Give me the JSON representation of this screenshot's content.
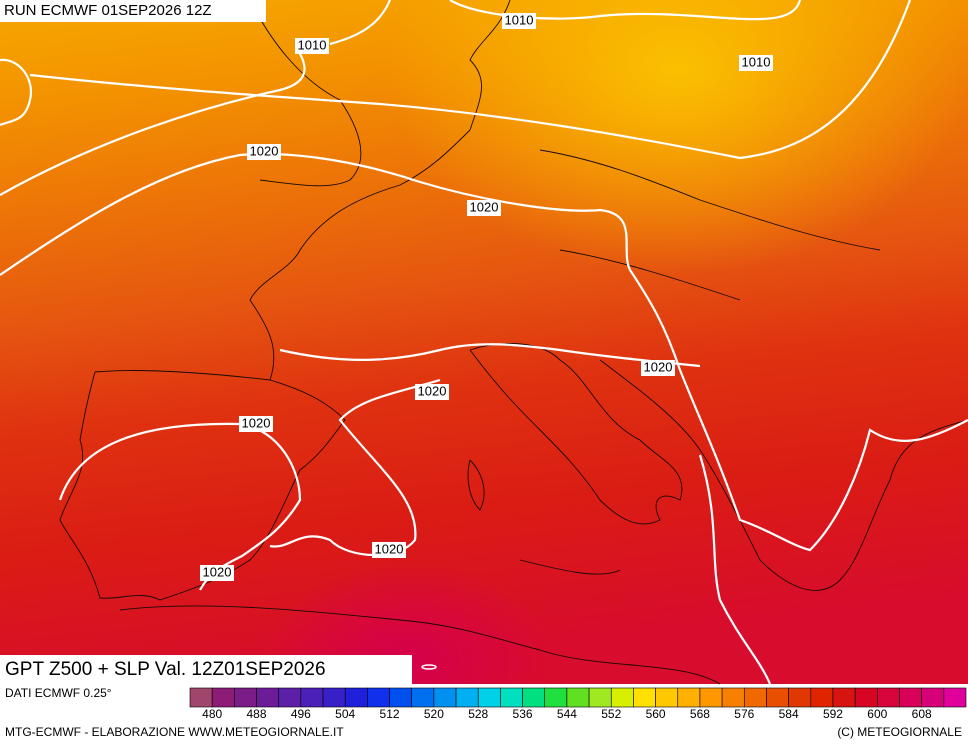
{
  "header": {
    "run": "RUN ECMWF 01SEP2026 12Z"
  },
  "map": {
    "isobar_labels": [
      "1010",
      "1010",
      "1010",
      "1020",
      "1020",
      "1020",
      "1020",
      "1020",
      "1020",
      "1020"
    ]
  },
  "footer": {
    "title": "GPT Z500 + SLP Val. 12Z01SEP2026",
    "data_source": "DATI ECMWF 0.25°",
    "credit": "MTG-ECMWF - ELABORAZIONE WWW.METEOGIORNALE.IT",
    "copyright": "(C) METEOGIORNALE"
  },
  "colorbar": {
    "ticks": [
      480,
      488,
      496,
      504,
      512,
      520,
      528,
      536,
      544,
      552,
      560,
      568,
      576,
      584,
      592,
      600,
      608
    ],
    "colors": [
      "#a0466c",
      "#8c1c78",
      "#7c1c88",
      "#6c1c98",
      "#5c20a8",
      "#4a20b8",
      "#3820c8",
      "#2020dc",
      "#1030ec",
      "#0050f0",
      "#0070f0",
      "#0090f0",
      "#00b0f0",
      "#00d0e8",
      "#00e0c0",
      "#00e080",
      "#20e040",
      "#60e020",
      "#a0e820",
      "#d8f000",
      "#ffe000",
      "#ffc800",
      "#ffb000",
      "#ff9800",
      "#f88000",
      "#f06800",
      "#e85000",
      "#e03800",
      "#e02400",
      "#d81410",
      "#d80424",
      "#d8043c",
      "#d80058",
      "#d80078",
      "#e0009c"
    ]
  }
}
